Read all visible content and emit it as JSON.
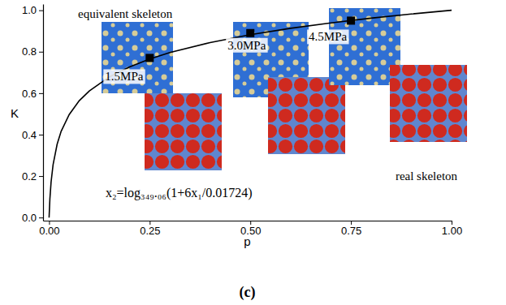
{
  "chart_data": {
    "type": "line",
    "x_label": "p",
    "y_label": "K",
    "panel_label": "(c)",
    "annotations": [
      "equivalent skeleton",
      "real skeleton",
      "x₂=log₃₄₉.₀₆(1+6x₁/0.01724)"
    ],
    "xlim": [
      -0.015,
      1.0
    ],
    "ylim": [
      -0.015,
      1.03
    ],
    "xticks": [
      {
        "value": 0,
        "label": "0.00"
      },
      0.25,
      {
        "value": 0.5,
        "label": "0.50"
      },
      0.75,
      {
        "value": 1,
        "label": "1.00"
      }
    ],
    "yticks": [
      {
        "value": 0,
        "label": "0.0"
      },
      0.2,
      0.4,
      0.6,
      0.8,
      {
        "value": 1,
        "label": "1.0"
      }
    ],
    "grid": false,
    "series": [
      {
        "type": "line",
        "color": "#000000",
        "line_style": "solid",
        "x": [
          0,
          0.002,
          0.005,
          0.01,
          0.02,
          0.03,
          0.05,
          0.075,
          0.1,
          0.15,
          0.2,
          0.25,
          0.3,
          0.4,
          0.5,
          0.6,
          0.7,
          0.8,
          0.9,
          1.0
        ],
        "values": [
          0,
          0.09,
          0.172,
          0.256,
          0.354,
          0.416,
          0.497,
          0.564,
          0.611,
          0.679,
          0.727,
          0.765,
          0.796,
          0.844,
          0.882,
          0.913,
          0.939,
          0.962,
          0.982,
          1.0
        ]
      },
      {
        "type": "scatter",
        "color": "#000000",
        "marker": "square",
        "x": [
          0.25,
          0.5,
          0.75
        ],
        "values": [
          0.77,
          0.89,
          0.95
        ],
        "labels": [
          "1.5MPa",
          "3.0MPa",
          "4.5MPa"
        ]
      }
    ]
  }
}
